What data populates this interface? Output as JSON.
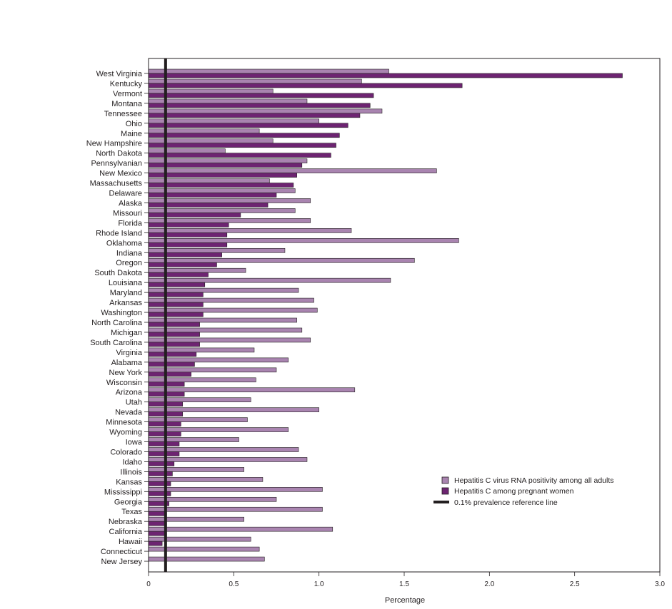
{
  "chart_data": {
    "type": "bar",
    "orientation": "horizontal",
    "xlabel": "Percentage",
    "xlim": [
      0,
      3.0
    ],
    "xticks": [
      "0",
      "0.5",
      "1.0",
      "1.5",
      "2.0",
      "2.5",
      "3.0"
    ],
    "xtick_values": [
      0,
      0.5,
      1.0,
      1.5,
      2.0,
      2.5,
      3.0
    ],
    "grid": false,
    "legend_position": "bottom-right",
    "reference_line": {
      "value": 0.1,
      "label": "0.1% prevalence reference line",
      "color": "#231f20"
    },
    "categories": [
      "West Virginia",
      "Kentucky",
      "Vermont",
      "Montana",
      "Tennessee",
      "Ohio",
      "Maine",
      "New Hampshire",
      "North Dakota",
      "Pennsylvanian",
      "New Mexico",
      "Massachusetts",
      "Delaware",
      "Alaska",
      "Missouri",
      "Florida",
      "Rhode Island",
      "Oklahoma",
      "Indiana",
      "Oregon",
      "South Dakota",
      "Louisiana",
      "Maryland",
      "Arkansas",
      "Washington",
      "North Carolina",
      "Michigan",
      "South Carolina",
      "Virginia",
      "Alabama",
      "New York",
      "Wisconsin",
      "Arizona",
      "Utah",
      "Nevada",
      "Minnesota",
      "Wyoming",
      "Iowa",
      "Colorado",
      "Idaho",
      "Illinois",
      "Kansas",
      "Mississippi",
      "Georgia",
      "Texas",
      "Nebraska",
      "California",
      "Hawaii",
      "Connecticut",
      "New Jersey"
    ],
    "series": [
      {
        "name": "Hepatitis C virus RNA positivity among all adults",
        "color": "#a984b0",
        "values": [
          1.41,
          1.25,
          0.73,
          0.93,
          1.37,
          1.0,
          0.65,
          0.73,
          0.45,
          0.93,
          1.69,
          0.71,
          0.86,
          0.95,
          0.86,
          0.95,
          1.19,
          1.82,
          0.8,
          1.56,
          0.57,
          1.42,
          0.88,
          0.97,
          0.99,
          0.87,
          0.9,
          0.95,
          0.62,
          0.82,
          0.75,
          0.63,
          1.21,
          0.6,
          1.0,
          0.58,
          0.82,
          0.53,
          0.88,
          0.93,
          0.56,
          0.67,
          1.02,
          0.75,
          1.02,
          0.56,
          1.08,
          0.6,
          0.65,
          0.68
        ]
      },
      {
        "name": "Hepatitis C among pregnant women",
        "color": "#6d2471",
        "values": [
          2.78,
          1.84,
          1.32,
          1.3,
          1.24,
          1.17,
          1.12,
          1.1,
          1.07,
          0.9,
          0.87,
          0.85,
          0.75,
          0.7,
          0.54,
          0.47,
          0.46,
          0.46,
          0.43,
          0.4,
          0.35,
          0.33,
          0.32,
          0.32,
          0.32,
          0.3,
          0.3,
          0.3,
          0.28,
          0.27,
          0.25,
          0.21,
          0.21,
          0.2,
          0.2,
          0.19,
          0.19,
          0.18,
          0.18,
          0.15,
          0.14,
          0.13,
          0.13,
          0.12,
          0.1,
          0.1,
          0.1,
          0.08,
          null,
          null
        ]
      }
    ]
  }
}
